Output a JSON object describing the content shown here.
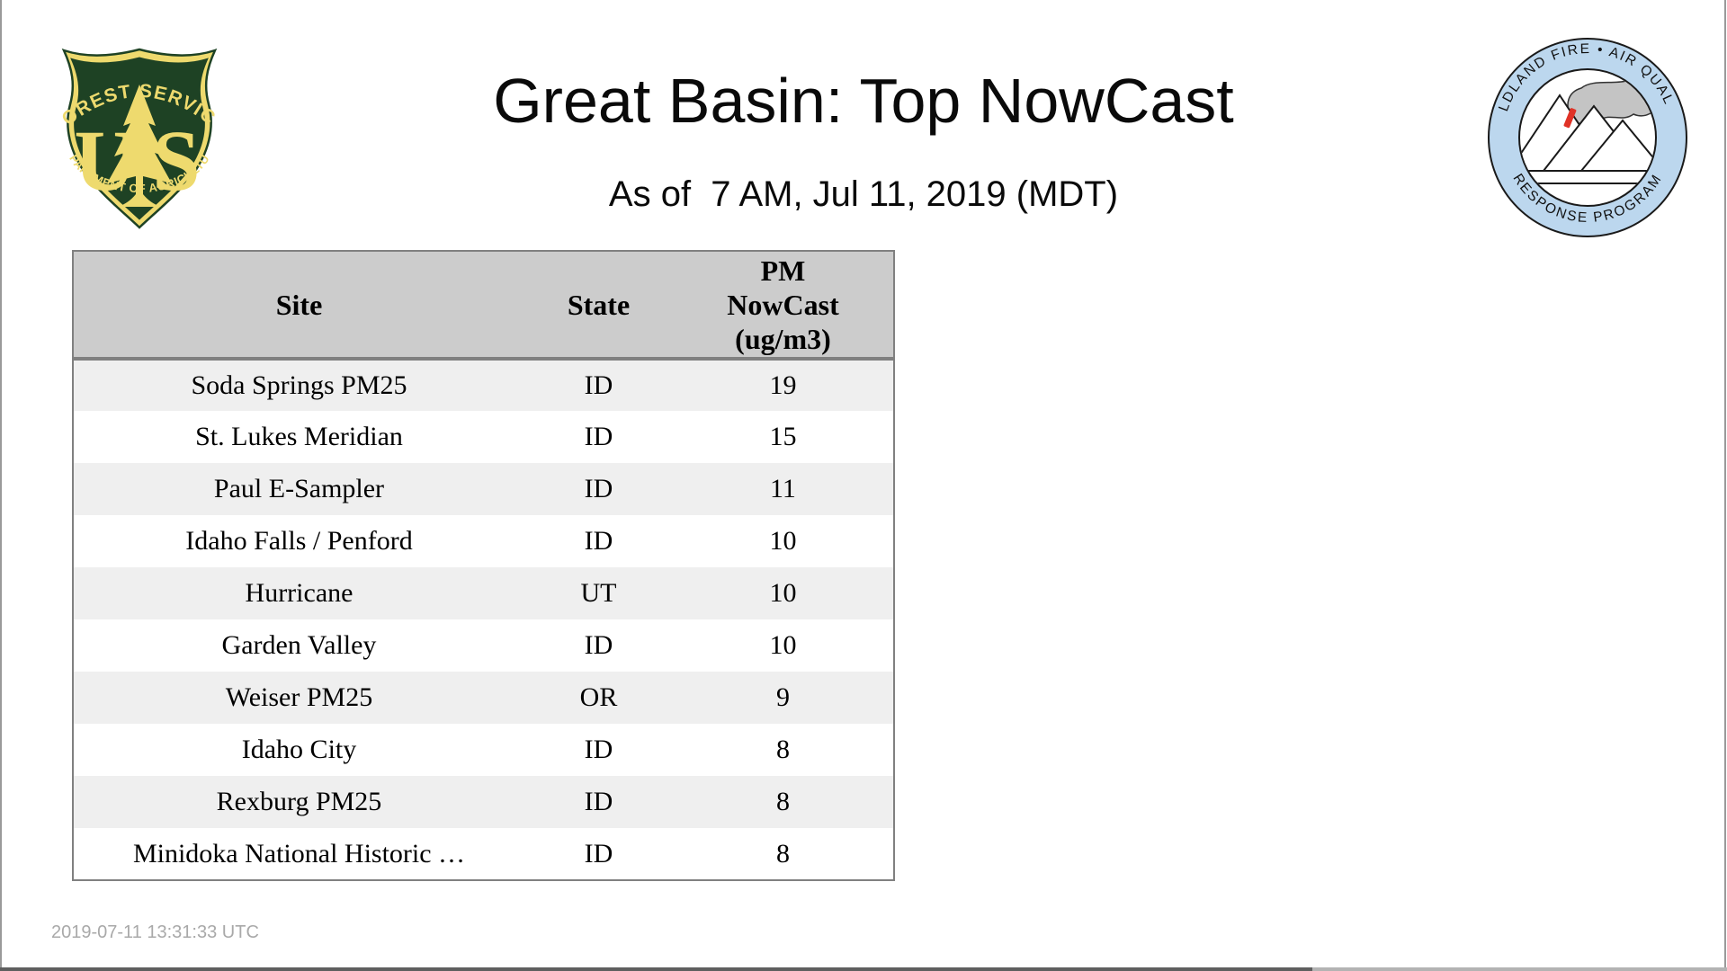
{
  "header": {
    "title": "Great Basin: Top NowCast",
    "subtitle": "As of  7 AM, Jul 11, 2019 (MDT)"
  },
  "logos": {
    "forest_service": {
      "top_text": "FOREST SERVICE",
      "monogram_u": "U",
      "monogram_s": "S",
      "bottom_text": "DEPARTMENT OF AGRICULTURE",
      "green": "#1e4224",
      "yellow": "#eeda6e"
    },
    "wfaqrp": {
      "top_text": "WILDLAND FIRE • AIR QUALITY",
      "bottom_text": "RESPONSE PROGRAM",
      "ring_blue": "#bcd7ee",
      "smoke_gray": "#c4c4c4",
      "fire_red": "#e03226",
      "outline": "#1a1a1a"
    }
  },
  "table": {
    "columns": [
      "Site",
      "State",
      "PM\nNowCast\n(ug/m3)"
    ],
    "rows": [
      {
        "site": "Soda Springs PM25",
        "state": "ID",
        "value": "19"
      },
      {
        "site": "St. Lukes Meridian",
        "state": "ID",
        "value": "15"
      },
      {
        "site": "Paul E-Sampler",
        "state": "ID",
        "value": "11"
      },
      {
        "site": "Idaho Falls / Penford",
        "state": "ID",
        "value": "10"
      },
      {
        "site": "Hurricane",
        "state": "UT",
        "value": "10"
      },
      {
        "site": "Garden Valley",
        "state": "ID",
        "value": "10"
      },
      {
        "site": "Weiser PM25",
        "state": "OR",
        "value": "9"
      },
      {
        "site": "Idaho City",
        "state": "ID",
        "value": "8"
      },
      {
        "site": "Rexburg PM25",
        "state": "ID",
        "value": "8"
      },
      {
        "site": "Minidoka National Historic …",
        "state": "ID",
        "value": "8"
      }
    ],
    "header_bg": "#cccccc",
    "stripe_bg": "#efefef",
    "border_color": "#808080"
  },
  "footer": {
    "timestamp": "2019-07-11 13:31:33 UTC"
  }
}
